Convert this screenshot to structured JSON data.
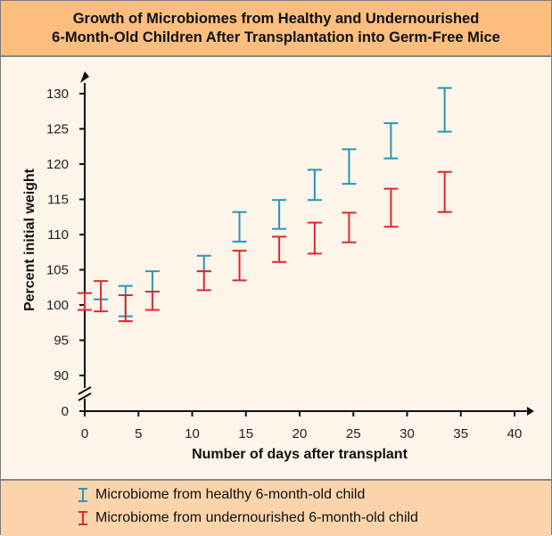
{
  "chart_data": {
    "type": "errorbar",
    "title": [
      "Growth of Microbiomes from Healthy and Undernourished",
      "6-Month-Old Children After Transplantation into Germ-Free Mice"
    ],
    "xlabel": "Number of days after transplant",
    "ylabel": "Percent initial weight",
    "xlim": [
      0,
      40
    ],
    "ylim": [
      90,
      130
    ],
    "y_axis_break": true,
    "xticks": [
      0,
      5,
      10,
      15,
      20,
      25,
      30,
      35,
      40
    ],
    "yticks": [
      0,
      90,
      95,
      100,
      105,
      110,
      115,
      120,
      125,
      130
    ],
    "grid": false,
    "legend_position": "bottom",
    "series": [
      {
        "name": "Microbiome from healthy 6-month-old child",
        "color": "#2a95b4",
        "points": [
          {
            "x": 1.5,
            "low": 100.8,
            "high": 100.8
          },
          {
            "x": 3.8,
            "low": 98.4,
            "high": 102.7
          },
          {
            "x": 6.3,
            "low": 101.9,
            "high": 104.8
          },
          {
            "x": 11.1,
            "low": 104.8,
            "high": 107.0
          },
          {
            "x": 14.4,
            "low": 109.0,
            "high": 113.2
          },
          {
            "x": 18.1,
            "low": 110.8,
            "high": 114.9
          },
          {
            "x": 21.4,
            "low": 114.9,
            "high": 119.2
          },
          {
            "x": 24.6,
            "low": 117.2,
            "high": 122.1
          },
          {
            "x": 28.5,
            "low": 120.8,
            "high": 125.8
          },
          {
            "x": 33.5,
            "low": 124.6,
            "high": 130.8
          }
        ]
      },
      {
        "name": "Microbiome from undernourished 6-month-old child",
        "color": "#e2262e",
        "points": [
          {
            "x": 0,
            "low": 99.3,
            "high": 101.7
          },
          {
            "x": 1.5,
            "low": 99.1,
            "high": 103.4
          },
          {
            "x": 3.8,
            "low": 97.7,
            "high": 101.4
          },
          {
            "x": 6.3,
            "low": 99.3,
            "high": 101.9
          },
          {
            "x": 11.1,
            "low": 102.1,
            "high": 104.8
          },
          {
            "x": 14.4,
            "low": 103.5,
            "high": 107.7
          },
          {
            "x": 18.1,
            "low": 106.1,
            "high": 109.7
          },
          {
            "x": 21.4,
            "low": 107.3,
            "high": 111.7
          },
          {
            "x": 24.6,
            "low": 108.9,
            "high": 113.1
          },
          {
            "x": 28.5,
            "low": 111.1,
            "high": 116.5
          },
          {
            "x": 33.5,
            "low": 113.2,
            "high": 118.9
          }
        ]
      }
    ]
  }
}
